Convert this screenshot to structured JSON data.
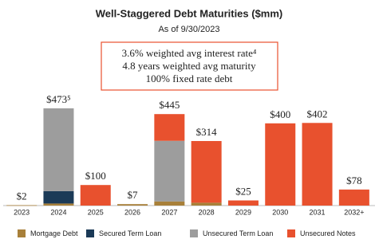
{
  "chart_data": {
    "type": "stacked_bar",
    "title": "Well-Staggered Debt Maturities ($mm)",
    "subtitle": "As of 9/30/2023",
    "annotations": [
      "3.6% weighted avg interest rate⁴",
      "4.8 years weighted avg maturity",
      "100% fixed rate debt"
    ],
    "categories": [
      "2023",
      "2024",
      "2025",
      "2026",
      "2027",
      "2028",
      "2029",
      "2030",
      "2031",
      "2032+"
    ],
    "series": [
      {
        "name": "Mortgage Debt",
        "color": "#a8803a",
        "values": [
          2,
          10,
          null,
          7,
          20,
          14,
          null,
          null,
          null,
          null
        ]
      },
      {
        "name": "Secured Term Loan",
        "color": "#1b3a57",
        "values": [
          null,
          60,
          null,
          null,
          null,
          null,
          null,
          null,
          null,
          null
        ]
      },
      {
        "name": "Unsecured Term Loan",
        "color": "#9d9d9d",
        "values": [
          null,
          403,
          null,
          null,
          295,
          null,
          null,
          null,
          null,
          null
        ]
      },
      {
        "name": "Unsecured Notes",
        "color": "#e8512e",
        "values": [
          null,
          null,
          100,
          null,
          130,
          300,
          25,
          400,
          402,
          78
        ]
      }
    ],
    "totals": [
      2,
      473,
      100,
      7,
      445,
      314,
      25,
      400,
      402,
      78
    ],
    "total_labels": [
      "$2",
      "$473⁵",
      "$100",
      "$7",
      "$445",
      "$314",
      "$25",
      "$400",
      "$402",
      "$78"
    ],
    "ylim": [
      0,
      500
    ]
  }
}
